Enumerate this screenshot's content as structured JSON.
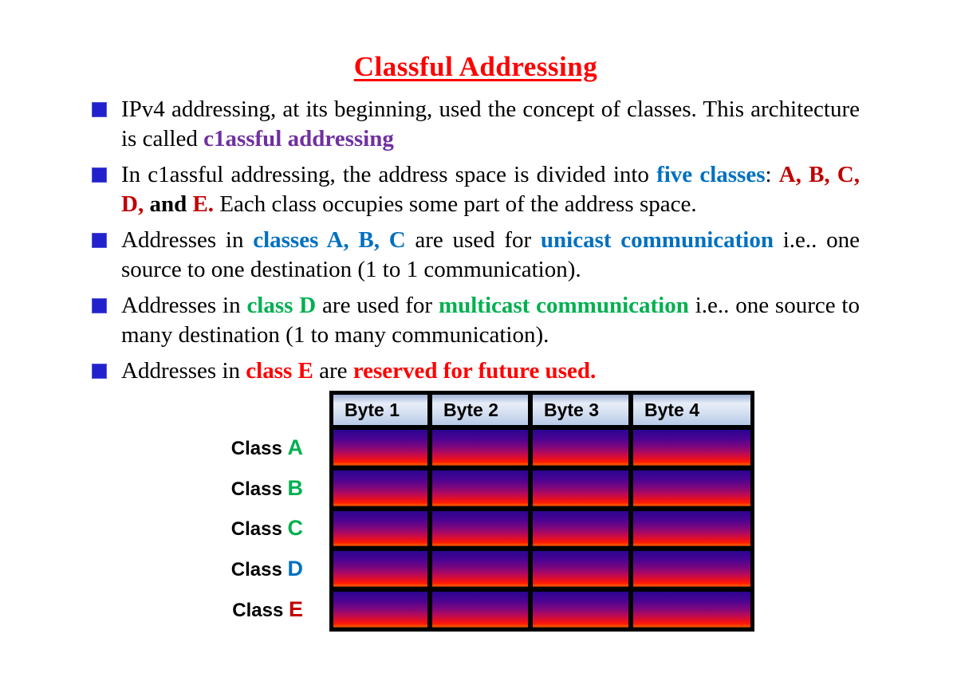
{
  "title": {
    "text": "Classful Addressing",
    "color": "#FF0000"
  },
  "colors": {
    "title_red": "#FF0000",
    "purple": "#7030A0",
    "blue": "#0070C0",
    "dark_red": "#C00000",
    "green": "#00B050",
    "bright_red": "#FF0000",
    "bullet_square": "#2222CC",
    "bar_gradient_top": "#2B0590",
    "bar_gradient_bottom": "#FF1B02",
    "header_fill_top": "#E7EDF8",
    "header_fill_bottom": "#B7C9E8"
  },
  "bullets": [
    {
      "segments": [
        {
          "text": "IPv4 addressing, at its beginning, used the concept of classes. This architecture is called "
        },
        {
          "text": "c1assful addressing",
          "color": "#7030A0"
        }
      ]
    },
    {
      "segments": [
        {
          "text": "In c1assful addressing, the address space is divided into "
        },
        {
          "text": "five classes",
          "color": "#0070C0"
        },
        {
          "text": ": "
        },
        {
          "text": "A, B, C, D,",
          "color": "#C00000"
        },
        {
          "text": " and "
        },
        {
          "text": "E.",
          "color": "#C00000"
        },
        {
          "text": " Each class occupies some part of the address space."
        }
      ]
    },
    {
      "segments": [
        {
          "text": "Addresses in "
        },
        {
          "text": "classes A, B, C",
          "color": "#0070C0"
        },
        {
          "text": " are used for "
        },
        {
          "text": "unicast communication",
          "color": "#0070C0"
        },
        {
          "text": " i.e.. one source to one destination (1 to 1 communication)."
        }
      ]
    },
    {
      "segments": [
        {
          "text": "Addresses in "
        },
        {
          "text": "class D",
          "color": "#00B050"
        },
        {
          "text": " are used for "
        },
        {
          "text": "multicast communication",
          "color": "#00B050"
        },
        {
          "text": " i.e.. one source to many destination (1 to many communication)."
        }
      ]
    },
    {
      "segments": [
        {
          "text": "Addresses in "
        },
        {
          "text": "class E",
          "color": "#FF0000"
        },
        {
          "text": " are "
        },
        {
          "text": "reserved for future used.",
          "color": "#FF0000"
        }
      ]
    }
  ],
  "table": {
    "headers": [
      "Byte 1",
      "Byte 2",
      "Byte 3",
      "Byte 4"
    ],
    "rows": [
      {
        "label_prefix": "Class ",
        "label_letter": "A",
        "letter_color": "#00B050"
      },
      {
        "label_prefix": "Class ",
        "label_letter": "B",
        "letter_color": "#00B050"
      },
      {
        "label_prefix": "Class ",
        "label_letter": "C",
        "letter_color": "#00B050"
      },
      {
        "label_prefix": "Class ",
        "label_letter": "D",
        "letter_color": "#0070C0"
      },
      {
        "label_prefix": "Class ",
        "label_letter": "E",
        "letter_color": "#C00000"
      }
    ]
  }
}
